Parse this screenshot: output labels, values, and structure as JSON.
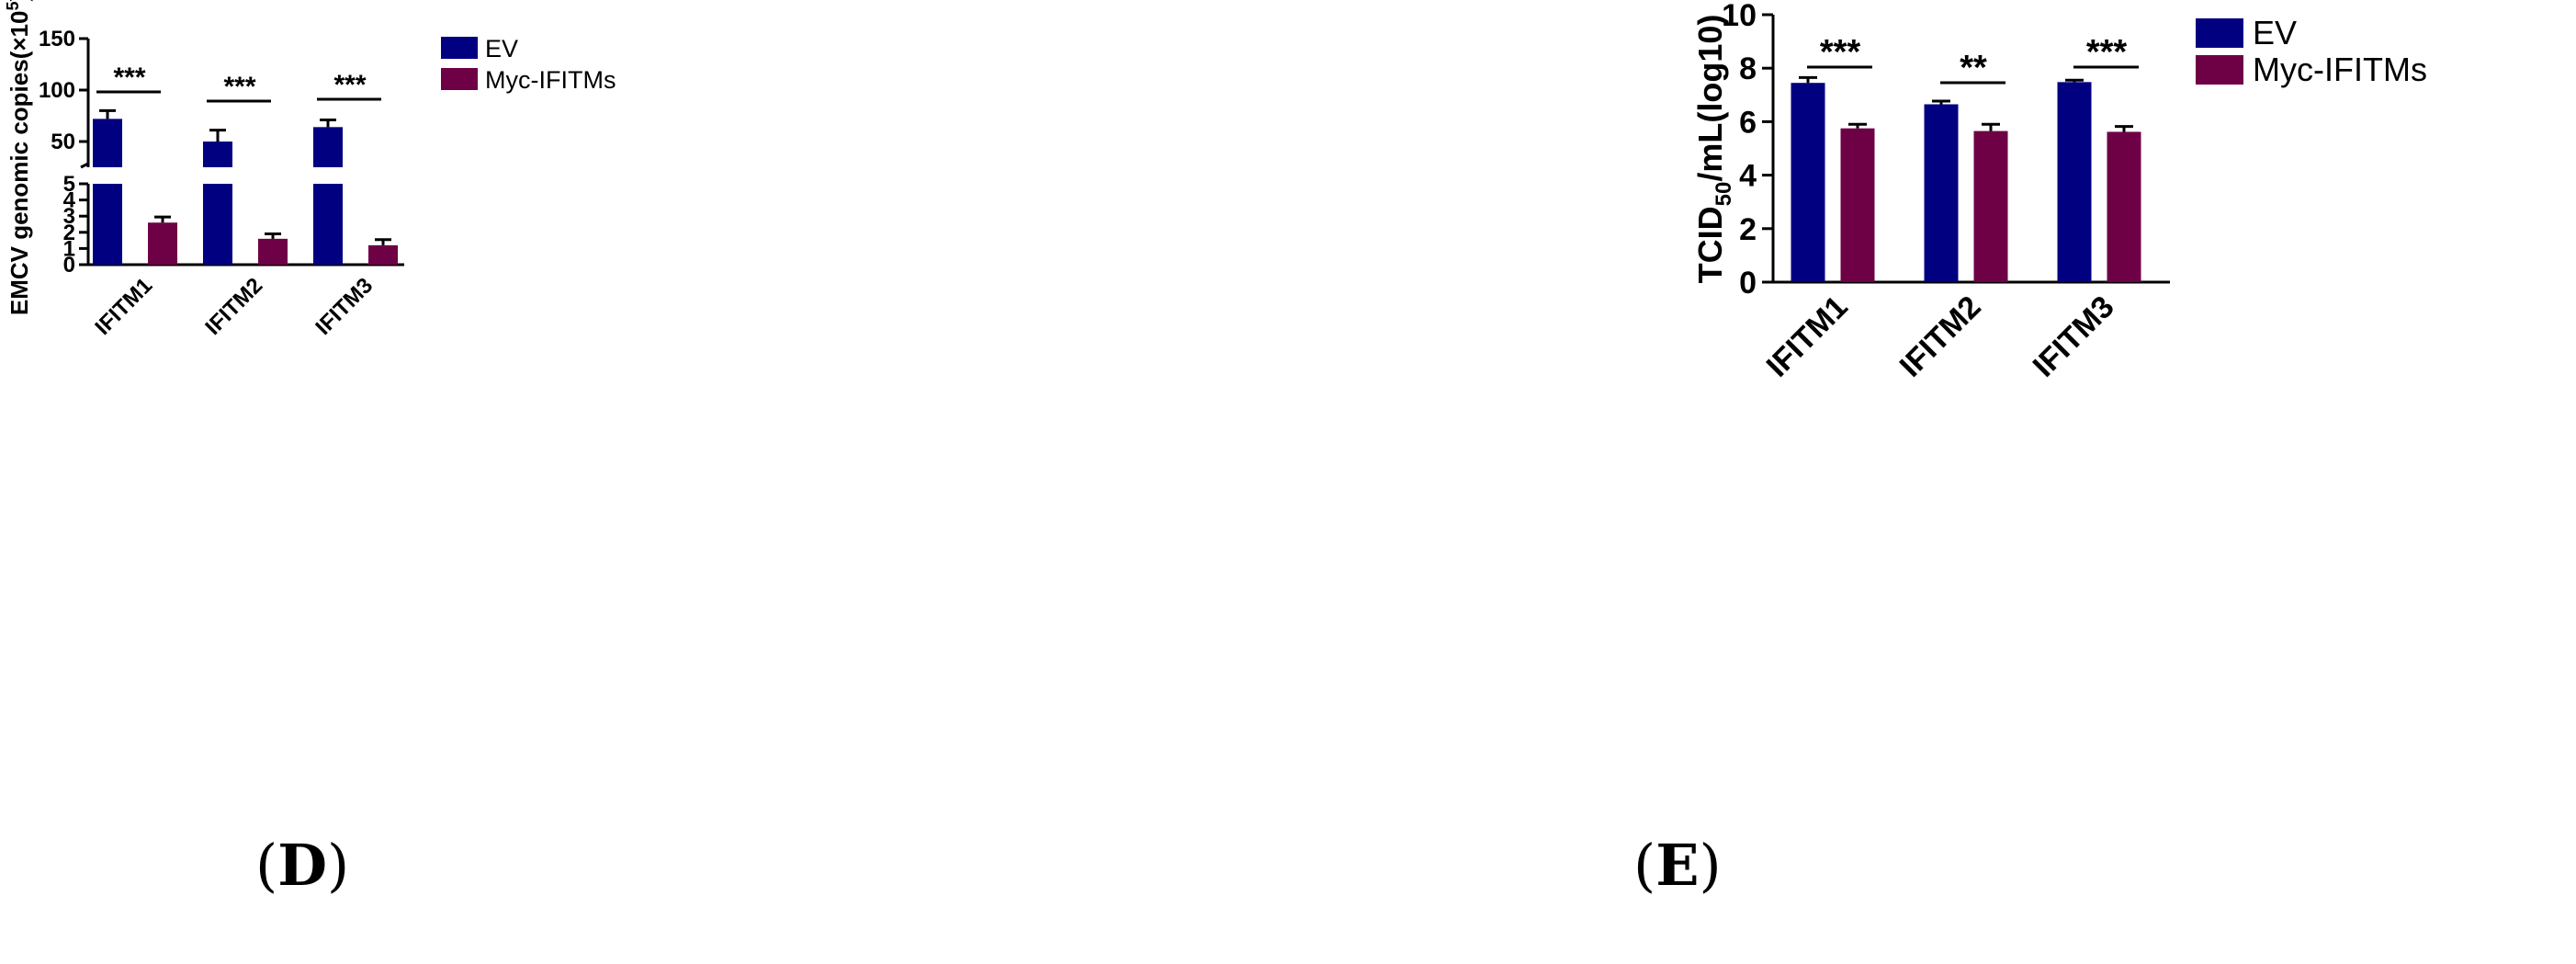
{
  "chart_data": [
    {
      "type": "bar",
      "panel": "D",
      "panel_label_open": "(",
      "panel_label_letter": "D",
      "panel_label_close": ")",
      "ylabel_main": "EMCV genomic copies(×10",
      "ylabel_sup": "5",
      "ylabel_end": ")",
      "xlabel": "",
      "broken_axis": true,
      "ylim_lower": [
        0,
        5
      ],
      "ylim_upper": [
        25,
        150
      ],
      "yticks_lower": [
        0,
        1,
        2,
        3,
        4,
        5
      ],
      "yticks_upper": [
        50,
        100,
        150
      ],
      "categories": [
        "IFITM1",
        "IFITM2",
        "IFITM3"
      ],
      "series": [
        {
          "name": "EV",
          "color": "#000080",
          "values": [
            72,
            50,
            64
          ],
          "errors": [
            8,
            11,
            7
          ]
        },
        {
          "name": "Myc-IFITMs",
          "color": "#6E0045",
          "values": [
            2.6,
            1.6,
            1.2
          ],
          "errors": [
            0.35,
            0.3,
            0.35
          ]
        }
      ],
      "significance": [
        "***",
        "***",
        "***"
      ],
      "legend": "top-right",
      "grid": false
    },
    {
      "type": "bar",
      "panel": "E",
      "panel_label_open": "(",
      "panel_label_letter": "E",
      "panel_label_close": ")",
      "ylabel_main": "TCID",
      "ylabel_sub": "50",
      "ylabel_end": "/mL(log10)",
      "xlabel": "",
      "broken_axis": false,
      "ylim": [
        0,
        10
      ],
      "yticks": [
        0,
        2,
        4,
        6,
        8,
        10
      ],
      "categories": [
        "IFITM1",
        "IFITM2",
        "IFITM3"
      ],
      "series": [
        {
          "name": "EV",
          "color": "#000080",
          "values": [
            7.45,
            6.65,
            7.48
          ],
          "errors": [
            0.2,
            0.12,
            0.07
          ]
        },
        {
          "name": "Myc-IFITMs",
          "color": "#6E0045",
          "values": [
            5.75,
            5.65,
            5.62
          ],
          "errors": [
            0.15,
            0.25,
            0.2
          ]
        }
      ],
      "significance": [
        "***",
        "**",
        "***"
      ],
      "legend": "top-right",
      "grid": false
    }
  ]
}
